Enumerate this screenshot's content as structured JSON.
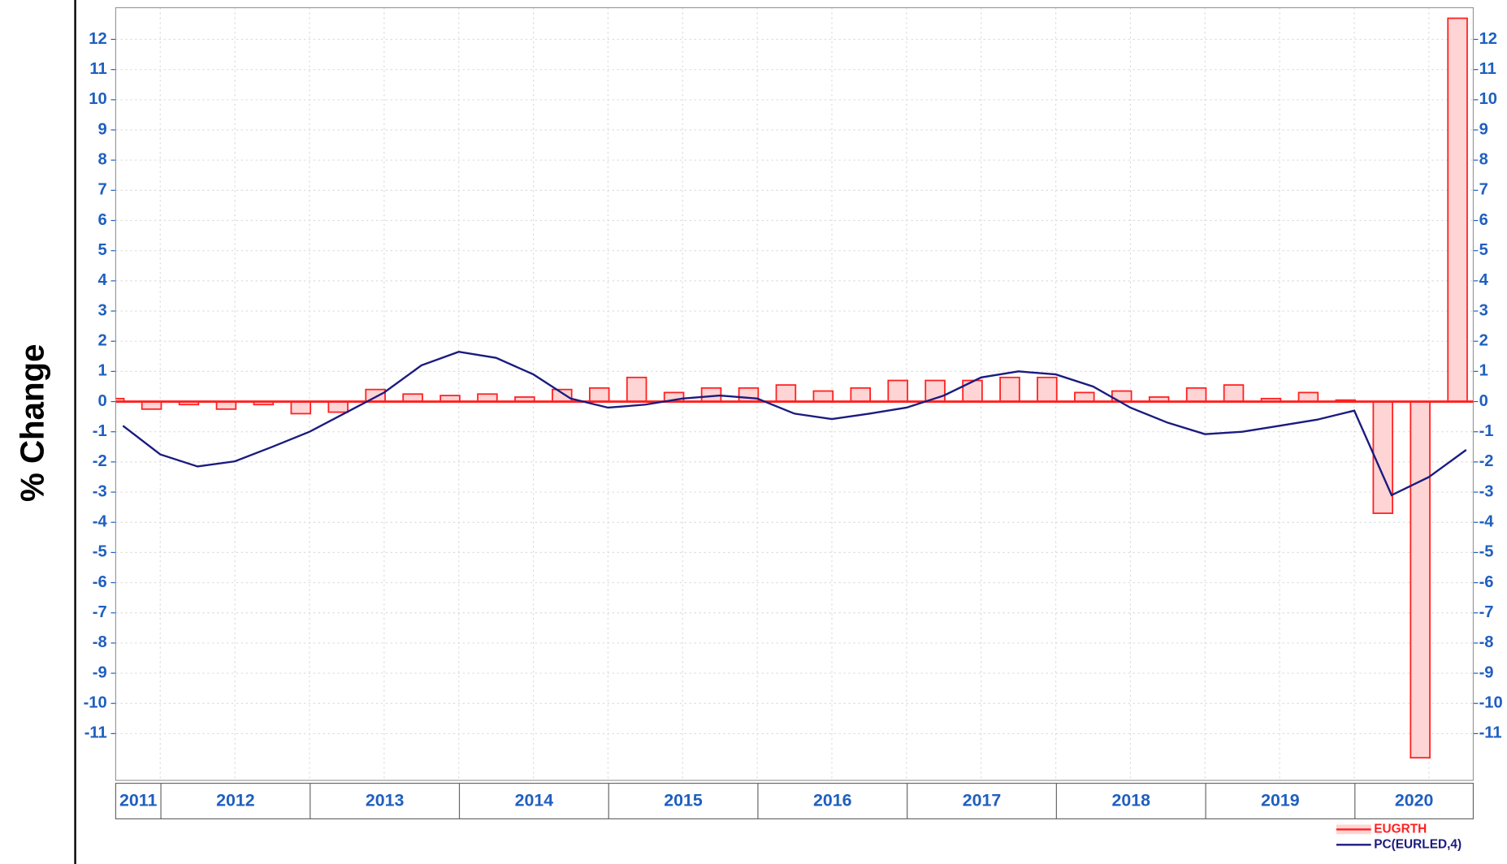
{
  "chart_data": {
    "type": "bar_line",
    "y_label": "% Change",
    "categories": [
      null,
      null,
      null,
      null,
      null,
      null,
      null,
      null,
      null,
      null,
      null,
      null,
      null,
      null,
      null,
      null,
      null,
      null,
      null,
      null,
      null,
      null,
      null,
      null,
      null,
      null,
      null,
      null,
      null,
      null,
      null,
      null,
      null,
      null,
      null,
      null,
      null
    ],
    "x_groups": [
      "2011",
      "2012",
      "2013",
      "2014",
      "2015",
      "2016",
      "2017",
      "2018",
      "2019",
      "2020"
    ],
    "series": [
      {
        "name": "EUGRTH",
        "type": "bar",
        "color": "#ff2020",
        "fill": "#ffd4d4",
        "values": [
          0.1,
          -0.25,
          -0.1,
          -0.25,
          -0.1,
          -0.4,
          -0.35,
          0.4,
          0.25,
          0.2,
          0.25,
          0.15,
          0.4,
          0.45,
          0.8,
          0.3,
          0.45,
          0.45,
          0.55,
          0.35,
          0.45,
          0.7,
          0.7,
          0.7,
          0.8,
          0.8,
          0.3,
          0.35,
          0.15,
          0.45,
          0.55,
          0.1,
          0.3,
          0.05,
          -3.7,
          -11.8,
          12.7
        ]
      },
      {
        "name": "PC(EURLED,4)",
        "type": "line",
        "color": "#1a1a80",
        "values": [
          -0.8,
          -1.75,
          -2.15,
          -1.98,
          -1.5,
          -1.0,
          -0.35,
          0.3,
          1.2,
          1.65,
          1.45,
          0.9,
          0.1,
          -0.2,
          -0.1,
          0.1,
          0.2,
          0.1,
          -0.4,
          -0.58,
          -0.4,
          -0.2,
          0.2,
          0.8,
          1.0,
          0.9,
          0.5,
          -0.2,
          -0.7,
          -1.08,
          -1.0,
          -0.8,
          -0.6,
          -0.3,
          -3.1,
          -2.5,
          -1.6
        ]
      }
    ],
    "ylim": [
      -12.55,
      13.05
    ],
    "yticks": [
      -11,
      -10,
      -9,
      -8,
      -7,
      -6,
      -5,
      -4,
      -3,
      -2,
      -1,
      0,
      1,
      2,
      3,
      4,
      5,
      6,
      7,
      8,
      9,
      10,
      11,
      12
    ],
    "grid": true
  }
}
